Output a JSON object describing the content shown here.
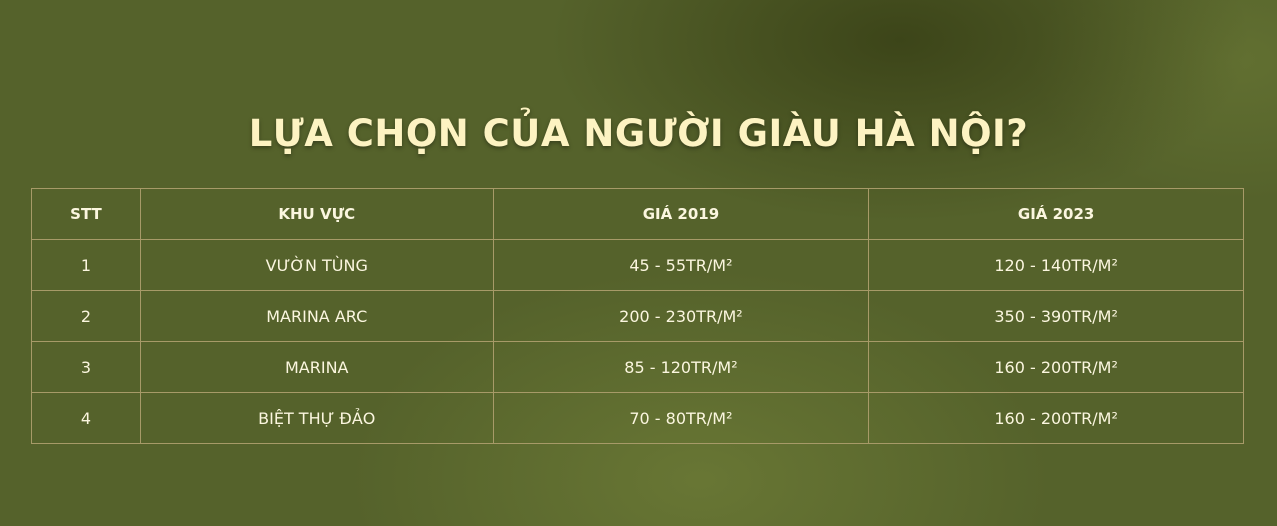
{
  "title": "LỰA CHỌN CỦA NGƯỜI GIÀU HÀ NỘI?",
  "table": {
    "headers": [
      "STT",
      "KHU VỰC",
      "GIÁ 2019",
      "GIÁ 2023"
    ],
    "rows": [
      [
        "1",
        "VƯỜN TÙNG",
        "45 - 55TR/M²",
        "120 - 140TR/M²"
      ],
      [
        "2",
        "MARINA ARC",
        "200 - 230TR/M²",
        "350 - 390TR/M²"
      ],
      [
        "3",
        "MARINA",
        "85 -  120TR/M²",
        "160 - 200TR/M²"
      ],
      [
        "4",
        "BIỆT THỰ ĐẢO",
        "70 -  80TR/M²",
        "160 - 200TR/M²"
      ]
    ]
  },
  "colors": {
    "title": "#fdf3c2",
    "border": "#a79a68",
    "background": "#55622b"
  }
}
